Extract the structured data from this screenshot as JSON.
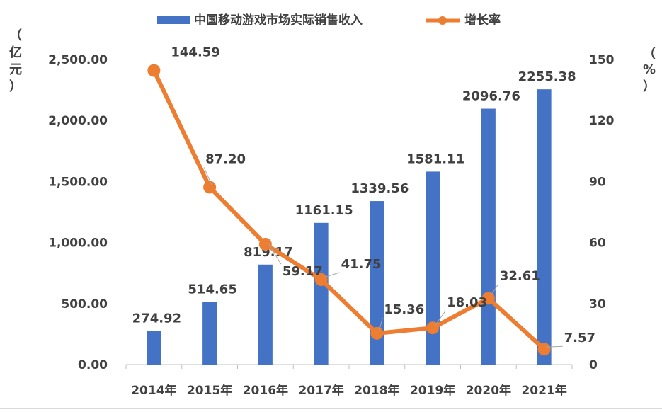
{
  "chart_data": {
    "type": "bar+line",
    "categories": [
      "2014年",
      "2015年",
      "2016年",
      "2017年",
      "2018年",
      "2019年",
      "2020年",
      "2021年"
    ],
    "series": [
      {
        "name": "中国移动游戏市场实际销售收入",
        "type": "bar",
        "axis": "left",
        "values": [
          274.92,
          514.65,
          819.17,
          1161.15,
          1339.56,
          1581.11,
          2096.76,
          2255.38
        ],
        "labels": [
          "274.92",
          "514.65",
          "819.17",
          "1161.15",
          "1339.56",
          "1581.11",
          "2096.76",
          "2255.38"
        ],
        "color": "#4472c4"
      },
      {
        "name": "增长率",
        "type": "line",
        "axis": "right",
        "values": [
          144.59,
          87.2,
          59.17,
          41.75,
          15.36,
          18.03,
          32.61,
          7.57
        ],
        "labels": [
          "144.59",
          "87.20",
          "59.17",
          "41.75",
          "15.36",
          "18.03",
          "32.61",
          "7.57"
        ],
        "color": "#ed7d31"
      }
    ],
    "y_left": {
      "label_chars": [
        "（",
        "亿",
        "元",
        "）"
      ],
      "ylim": [
        0,
        2500
      ],
      "ticks": [
        0,
        500,
        1000,
        1500,
        2000,
        2500
      ],
      "tick_labels": [
        "0.00",
        "500.00",
        "1,000.00",
        "1,500.00",
        "2,000.00",
        "2,500.00"
      ]
    },
    "y_right": {
      "label_chars": [
        "（",
        "%",
        "）"
      ],
      "ylim": [
        0,
        150
      ],
      "ticks": [
        0,
        30,
        60,
        90,
        120,
        150
      ],
      "tick_labels": [
        "0",
        "30",
        "60",
        "90",
        "120",
        "150"
      ]
    },
    "legend_position": "top-center",
    "grid": false
  }
}
